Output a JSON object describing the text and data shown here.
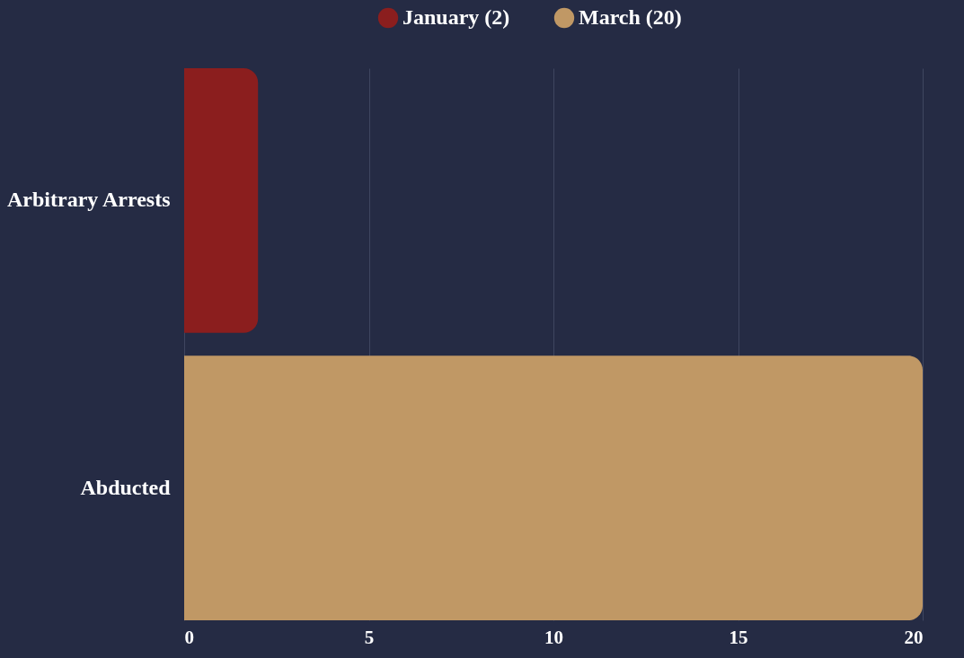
{
  "chart_data": {
    "type": "bar",
    "orientation": "horizontal",
    "categories": [
      "Arbitrary Arrests",
      "Abducted"
    ],
    "series": [
      {
        "name": "January (2)",
        "color": "#8b1e1e",
        "values": [
          2,
          null
        ]
      },
      {
        "name": "March (20)",
        "color": "#c09865",
        "values": [
          null,
          20
        ]
      }
    ],
    "xlim": [
      0,
      20
    ],
    "xticks": [
      0,
      5,
      10,
      15,
      20
    ],
    "grid": "x",
    "legend": "top"
  }
}
